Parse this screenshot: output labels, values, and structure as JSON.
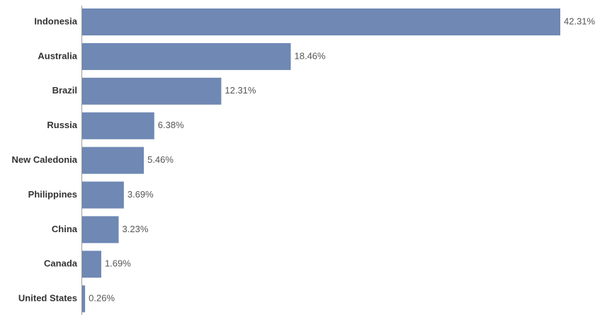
{
  "chart_data": {
    "type": "bar",
    "orientation": "horizontal",
    "color": "#6f88b4",
    "categories": [
      "Indonesia",
      "Australia",
      "Brazil",
      "Russia",
      "New Caledonia",
      "Philippines",
      "China",
      "Canada",
      "United States"
    ],
    "values": [
      42.31,
      18.46,
      12.31,
      6.38,
      5.46,
      3.69,
      3.23,
      1.69,
      0.26
    ],
    "value_labels": [
      "42.31%",
      "18.46%",
      "12.31%",
      "6.38%",
      "5.46%",
      "3.69%",
      "3.23%",
      "1.69%",
      "0.26%"
    ]
  }
}
